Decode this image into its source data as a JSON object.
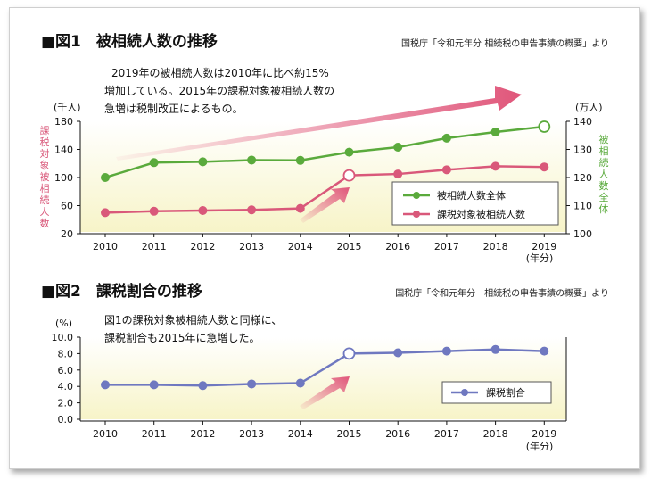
{
  "figure1": {
    "title": "■図1　被相続人数の推移",
    "source": "国税庁「令和元年分 相続税の申告事績の概要」より",
    "note_lines": [
      "2019年の被相続人数は2010年に比べ約15%",
      "増加している。2015年の課税対象被相続人数の",
      "急増は税制改正によるもの。"
    ],
    "left_unit": "(千人)",
    "right_unit": "(万人)",
    "left_axis_label": "課税対象被相続人数",
    "right_axis_label": "被相続人数全体",
    "left_ticks": [
      "180",
      "140",
      "100",
      "60",
      "20"
    ],
    "right_ticks": [
      "140",
      "130",
      "120",
      "110",
      "100"
    ],
    "x_labels": [
      "2010",
      "2011",
      "2012",
      "2013",
      "2014",
      "2015",
      "2016",
      "2017",
      "2018",
      "2019"
    ],
    "x_unit": "(年分)",
    "legend": [
      "被相続人数全体",
      "課税対象被相続人数"
    ]
  },
  "figure2": {
    "title": "■図2　課税割合の推移",
    "source": "国税庁「令和元年分　相続税の申告事績の概要」より",
    "note_lines": [
      "図1の課税対象被相続人数と同様に、",
      "課税割合も2015年に急増した。"
    ],
    "y_unit": "(%)",
    "y_ticks": [
      "10.0",
      "8.0",
      "6.0",
      "4.0",
      "2.0",
      "0.0"
    ],
    "x_labels": [
      "2010",
      "2011",
      "2012",
      "2013",
      "2014",
      "2015",
      "2016",
      "2017",
      "2018",
      "2019"
    ],
    "x_unit": "(年分)",
    "legend": [
      "課税割合"
    ]
  },
  "colors": {
    "green": "#5aaa3c",
    "pink": "#d9587a",
    "blue": "#6f78c0",
    "arrow": "#e0567a"
  },
  "chart_data": [
    {
      "type": "line",
      "title": "図1 被相続人数の推移",
      "categories": [
        "2010",
        "2011",
        "2012",
        "2013",
        "2014",
        "2015",
        "2016",
        "2017",
        "2018",
        "2019"
      ],
      "series": [
        {
          "name": "被相続人数全体",
          "axis": "right",
          "unit": "万人",
          "values": [
            120,
            125.3,
            125.6,
            126.2,
            126.1,
            129.0,
            130.8,
            134.0,
            136.2,
            138.1
          ]
        },
        {
          "name": "課税対象被相続人数",
          "axis": "left",
          "unit": "千人",
          "values": [
            50,
            52,
            53,
            54,
            56,
            103,
            105,
            111,
            116,
            115
          ]
        }
      ],
      "ylim_left": [
        20,
        180
      ],
      "ylim_right": [
        100,
        140
      ],
      "grid": false,
      "legend_position": "bottom-right"
    },
    {
      "type": "line",
      "title": "図2 課税割合の推移",
      "categories": [
        "2010",
        "2011",
        "2012",
        "2013",
        "2014",
        "2015",
        "2016",
        "2017",
        "2018",
        "2019"
      ],
      "series": [
        {
          "name": "課税割合",
          "unit": "%",
          "values": [
            4.2,
            4.2,
            4.1,
            4.3,
            4.4,
            8.0,
            8.1,
            8.3,
            8.5,
            8.3
          ]
        }
      ],
      "ylim": [
        0,
        10
      ],
      "grid": false,
      "legend_position": "bottom-right"
    }
  ]
}
